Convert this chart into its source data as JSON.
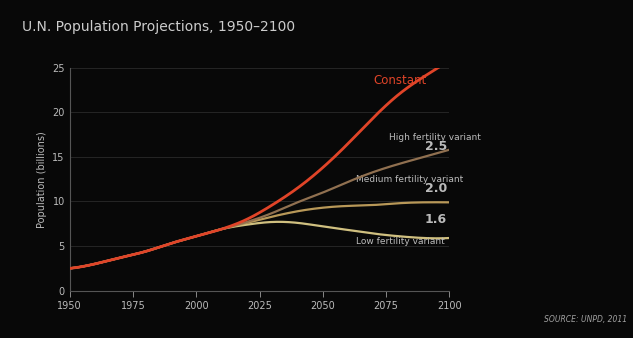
{
  "title": "U.N. Population Projections, 1950–2100",
  "ylabel": "Population (billions)",
  "source": "SOURCE: UNPD, 2011",
  "background_color": "#080808",
  "grid_color": "#2a2a2a",
  "text_color": "#bbbbbb",
  "title_color": "#cccccc",
  "xlim": [
    1950,
    2100
  ],
  "ylim": [
    0,
    25
  ],
  "yticks": [
    0,
    5,
    10,
    15,
    20,
    25
  ],
  "xticks": [
    1950,
    1975,
    2000,
    2025,
    2050,
    2075,
    2100
  ],
  "series": {
    "constant": {
      "label": "Constant",
      "color": "#e04428",
      "linewidth": 2.0,
      "years": [
        1950,
        1960,
        1970,
        1980,
        1990,
        2000,
        2010,
        2020,
        2030,
        2040,
        2050,
        2060,
        2070,
        2080,
        2090,
        2100
      ],
      "population": [
        2.5,
        3.0,
        3.7,
        4.4,
        5.3,
        6.1,
        6.9,
        8.0,
        9.6,
        11.5,
        13.8,
        16.5,
        19.4,
        22.0,
        24.0,
        25.8
      ]
    },
    "high": {
      "label": "High fertility variant",
      "value_label": "2.5",
      "color": "#907050",
      "linewidth": 1.6,
      "years": [
        1950,
        1960,
        1970,
        1980,
        1990,
        2000,
        2010,
        2020,
        2030,
        2040,
        2050,
        2060,
        2070,
        2080,
        2090,
        2100
      ],
      "population": [
        2.5,
        3.0,
        3.7,
        4.4,
        5.3,
        6.1,
        6.9,
        7.7,
        8.7,
        9.9,
        11.0,
        12.2,
        13.3,
        14.2,
        15.0,
        15.8
      ]
    },
    "medium": {
      "label": "Medium fertility variant",
      "value_label": "2.0",
      "color": "#b89858",
      "linewidth": 1.6,
      "years": [
        1950,
        1960,
        1970,
        1980,
        1990,
        2000,
        2010,
        2020,
        2030,
        2040,
        2050,
        2060,
        2070,
        2080,
        2090,
        2100
      ],
      "population": [
        2.5,
        3.0,
        3.7,
        4.4,
        5.3,
        6.1,
        6.9,
        7.6,
        8.3,
        8.9,
        9.3,
        9.5,
        9.6,
        9.8,
        9.9,
        9.9
      ]
    },
    "low": {
      "label": "Low fertility variant",
      "value_label": "1.6",
      "color": "#d0c080",
      "linewidth": 1.6,
      "years": [
        1950,
        1960,
        1970,
        1980,
        1990,
        2000,
        2010,
        2020,
        2030,
        2040,
        2050,
        2060,
        2070,
        2080,
        2090,
        2100
      ],
      "population": [
        2.5,
        3.0,
        3.7,
        4.4,
        5.3,
        6.1,
        6.9,
        7.4,
        7.7,
        7.6,
        7.2,
        6.8,
        6.4,
        6.1,
        5.9,
        5.9
      ]
    }
  }
}
